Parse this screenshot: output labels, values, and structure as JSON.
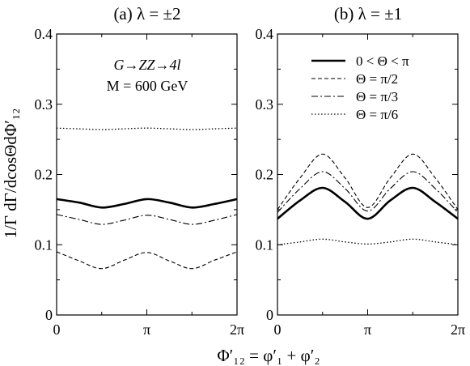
{
  "figure": {
    "ylabel": "1/Γ dΓ/dcosΘdΦ′₁₂",
    "xlabel": "Φ′₁₂ = φ′₁ + φ′₂",
    "yticks": [
      "0",
      "0.1",
      "0.2",
      "0.3",
      "0.4"
    ],
    "xticks": [
      "0",
      "π",
      "2π"
    ]
  },
  "chart_data": [
    {
      "type": "line",
      "title": "(a) λ = ±2",
      "annotations": [
        "G→ZZ→4l",
        "M = 600 GeV"
      ],
      "xlim": [
        0,
        6.2832
      ],
      "ylim": [
        0,
        0.4
      ],
      "grid": false,
      "series": [
        {
          "name": "0 < Θ < π",
          "style": "solid-thick",
          "x": [
            0,
            0.7854,
            1.5708,
            2.3562,
            3.1416,
            3.927,
            4.7124,
            5.4978,
            6.2832
          ],
          "values": [
            0.165,
            0.16,
            0.153,
            0.158,
            0.165,
            0.16,
            0.153,
            0.158,
            0.165
          ]
        },
        {
          "name": "Θ = π/2",
          "style": "dashed",
          "x": [
            0,
            0.7854,
            1.5708,
            2.3562,
            3.1416,
            3.927,
            4.7124,
            5.4978,
            6.2832
          ],
          "values": [
            0.09,
            0.077,
            0.066,
            0.078,
            0.089,
            0.077,
            0.066,
            0.078,
            0.09
          ]
        },
        {
          "name": "Θ = π/3",
          "style": "dashdot",
          "x": [
            0,
            0.7854,
            1.5708,
            2.3562,
            3.1416,
            3.927,
            4.7124,
            5.4978,
            6.2832
          ],
          "values": [
            0.143,
            0.136,
            0.129,
            0.135,
            0.142,
            0.136,
            0.129,
            0.135,
            0.143
          ]
        },
        {
          "name": "Θ = π/6",
          "style": "dotted",
          "x": [
            0,
            0.7854,
            1.5708,
            2.3562,
            3.1416,
            3.927,
            4.7124,
            5.4978,
            6.2832
          ],
          "values": [
            0.266,
            0.265,
            0.264,
            0.265,
            0.266,
            0.265,
            0.264,
            0.265,
            0.266
          ]
        }
      ]
    },
    {
      "type": "line",
      "title": "(b) λ = ±1",
      "xlim": [
        0,
        6.2832
      ],
      "ylim": [
        0,
        0.4
      ],
      "grid": false,
      "legend": {
        "placement": "top-right"
      },
      "series": [
        {
          "name": "0 < Θ < π",
          "style": "solid-thick",
          "x": [
            0,
            0.7854,
            1.5708,
            2.3562,
            3.1416,
            3.927,
            4.7124,
            5.4978,
            6.2832
          ],
          "values": [
            0.137,
            0.163,
            0.181,
            0.161,
            0.137,
            0.163,
            0.181,
            0.161,
            0.137
          ]
        },
        {
          "name": "Θ = π/2",
          "style": "dashed",
          "x": [
            0,
            0.7854,
            1.5708,
            2.3562,
            3.1416,
            3.927,
            4.7124,
            5.4978,
            6.2832
          ],
          "values": [
            0.15,
            0.195,
            0.229,
            0.195,
            0.153,
            0.195,
            0.229,
            0.195,
            0.15
          ]
        },
        {
          "name": "Θ = π/3",
          "style": "dashdot",
          "x": [
            0,
            0.7854,
            1.5708,
            2.3562,
            3.1416,
            3.927,
            4.7124,
            5.4978,
            6.2832
          ],
          "values": [
            0.146,
            0.18,
            0.204,
            0.18,
            0.148,
            0.18,
            0.204,
            0.18,
            0.146
          ]
        },
        {
          "name": "Θ = π/6",
          "style": "dotted",
          "x": [
            0,
            0.7854,
            1.5708,
            2.3562,
            3.1416,
            3.927,
            4.7124,
            5.4978,
            6.2832
          ],
          "values": [
            0.1,
            0.104,
            0.108,
            0.104,
            0.101,
            0.104,
            0.108,
            0.104,
            0.1
          ]
        }
      ]
    }
  ]
}
